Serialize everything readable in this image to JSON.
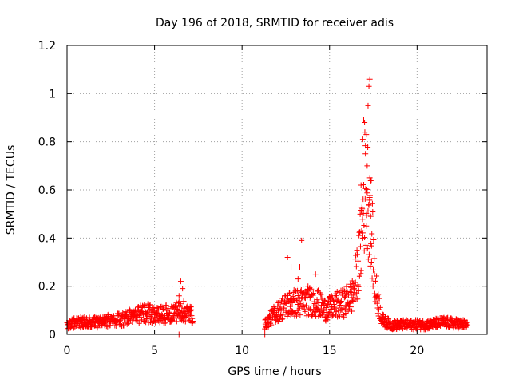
{
  "chart_data": {
    "type": "scatter",
    "title": "Day 196 of 2018, SRMTID for receiver adis",
    "xlabel": "GPS time / hours",
    "ylabel": "SRMTID / TECUs",
    "xlim": [
      0,
      24
    ],
    "ylim": [
      0,
      1.2
    ],
    "x_ticks": [
      0,
      5,
      10,
      15,
      20
    ],
    "x_tick_labels": [
      "0",
      "5",
      "10",
      "15",
      "20"
    ],
    "y_ticks": [
      0,
      0.2,
      0.4,
      0.6,
      0.8,
      1.0,
      1.2
    ],
    "y_tick_labels": [
      "0",
      "0.2",
      "0.4",
      "0.6",
      "0.8",
      "1",
      "1.2"
    ],
    "grid": true,
    "marker": "+",
    "series": [
      {
        "name": "adis",
        "color": "#ff0000",
        "profile": [
          [
            0.0,
            0.04
          ],
          [
            0.5,
            0.05
          ],
          [
            1.0,
            0.05
          ],
          [
            1.5,
            0.05
          ],
          [
            2.0,
            0.05
          ],
          [
            2.5,
            0.06
          ],
          [
            3.0,
            0.06
          ],
          [
            3.5,
            0.07
          ],
          [
            4.0,
            0.08
          ],
          [
            4.5,
            0.09
          ],
          [
            5.0,
            0.08
          ],
          [
            5.5,
            0.08
          ],
          [
            6.0,
            0.09
          ],
          [
            6.5,
            0.1
          ],
          [
            7.2,
            0.08
          ],
          [
            11.3,
            0.04
          ],
          [
            11.8,
            0.08
          ],
          [
            12.3,
            0.11
          ],
          [
            12.8,
            0.13
          ],
          [
            13.3,
            0.13
          ],
          [
            13.8,
            0.14
          ],
          [
            14.3,
            0.13
          ],
          [
            14.8,
            0.1
          ],
          [
            15.3,
            0.12
          ],
          [
            15.8,
            0.13
          ],
          [
            16.3,
            0.16
          ],
          [
            16.7,
            0.3
          ],
          [
            17.0,
            0.6
          ],
          [
            17.3,
            0.55
          ],
          [
            17.6,
            0.2
          ],
          [
            18.0,
            0.06
          ],
          [
            18.5,
            0.04
          ],
          [
            19.5,
            0.04
          ],
          [
            20.5,
            0.04
          ],
          [
            21.5,
            0.05
          ],
          [
            22.9,
            0.04
          ]
        ],
        "points": [
          [
            6.5,
            0.22
          ],
          [
            6.6,
            0.19
          ],
          [
            6.4,
            0.16
          ],
          [
            12.6,
            0.32
          ],
          [
            12.8,
            0.28
          ],
          [
            13.3,
            0.28
          ],
          [
            13.4,
            0.39
          ],
          [
            13.2,
            0.23
          ],
          [
            14.2,
            0.25
          ],
          [
            16.9,
            0.81
          ],
          [
            16.95,
            0.89
          ],
          [
            17.0,
            0.88
          ],
          [
            17.05,
            0.75
          ],
          [
            17.1,
            0.83
          ],
          [
            17.2,
            0.95
          ],
          [
            17.25,
            1.03
          ],
          [
            17.3,
            1.06
          ],
          [
            17.15,
            0.7
          ],
          [
            17.3,
            0.65
          ],
          [
            17.35,
            0.49
          ],
          [
            17.1,
            0.45
          ],
          [
            16.8,
            0.62
          ],
          [
            16.9,
            0.4
          ],
          [
            17.4,
            0.3
          ],
          [
            6.4,
            0.0
          ],
          [
            11.3,
            0.0
          ]
        ]
      }
    ]
  }
}
